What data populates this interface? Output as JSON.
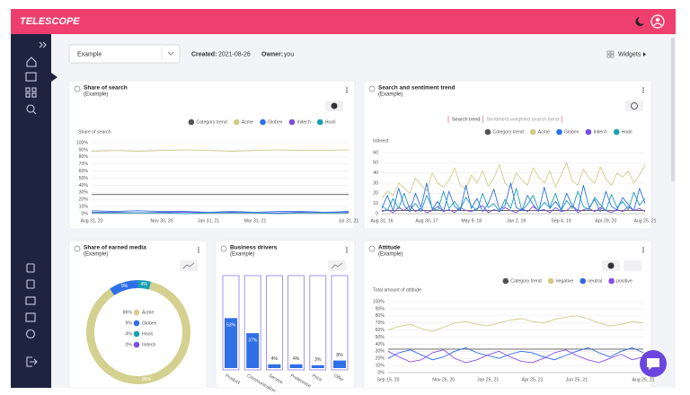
{
  "app": {
    "logo": "TELESCOPE"
  },
  "toolbar": {
    "select": "Example",
    "created_label": "Created:",
    "created": "2021-08-26",
    "owner_label": "Owner:",
    "owner": "you",
    "widgets": "Widgets"
  },
  "chart_data": [
    {
      "type": "line",
      "title": "Share of search",
      "subtitle": "(Example)",
      "y_label": "Share of search",
      "categories": [
        "Aug 31, 20",
        null,
        null,
        "Nov 30, 20",
        null,
        "Jan 31, 21",
        null,
        "Mar 31, 21",
        null,
        null,
        null,
        "Jul 31, 21"
      ],
      "series": [
        {
          "name": "Category trend",
          "color": "#555555",
          "values": [
            27,
            27,
            27,
            27,
            27,
            27,
            27,
            27,
            27,
            27,
            27,
            27
          ]
        },
        {
          "name": "Acme",
          "color": "#cfcb8a",
          "values": [
            88,
            89,
            88,
            89,
            90,
            89,
            88,
            89,
            90,
            89,
            89,
            90
          ]
        },
        {
          "name": "Globex",
          "color": "#2f6fe8",
          "values": [
            4,
            3,
            4,
            3,
            3,
            2,
            3,
            2,
            3,
            3,
            2,
            3
          ]
        },
        {
          "name": "Initech",
          "color": "#7b4de0",
          "values": [
            2,
            2,
            1,
            2,
            2,
            1,
            2,
            1,
            1,
            2,
            1,
            2
          ]
        },
        {
          "name": "Hooli",
          "color": "#1aa0b4",
          "values": [
            1,
            1,
            1,
            1,
            0,
            1,
            1,
            1,
            0,
            1,
            1,
            1
          ]
        }
      ],
      "ylim": [
        0,
        100
      ],
      "yticks": [
        {
          "value": 0,
          "label": "0%"
        },
        {
          "value": 10,
          "label": "10%"
        },
        {
          "value": 20,
          "label": "20%"
        },
        {
          "value": 30,
          "label": "30%"
        },
        {
          "value": 40,
          "label": "40%"
        },
        {
          "value": 50,
          "label": "50%"
        },
        {
          "value": 60,
          "label": "60%"
        },
        {
          "value": 70,
          "label": "70%"
        },
        {
          "value": 80,
          "label": "80%"
        },
        {
          "value": 90,
          "label": "90%"
        },
        {
          "value": 100,
          "label": "100%"
        }
      ],
      "grid": true
    },
    {
      "type": "line",
      "title": "Search and sentiment trend",
      "subtitle": "(Example)",
      "tabs": [
        "Search trend",
        "Sentiment-weighted search trend"
      ],
      "y_label": "Interest",
      "categories": [
        "Aug 31, 16",
        null,
        null,
        null,
        null,
        null,
        null,
        null,
        "Aug 30, 17",
        null,
        null,
        null,
        null,
        null,
        null,
        null,
        "May 9, 18",
        null,
        null,
        null,
        null,
        null,
        null,
        null,
        "Jan 2, 19",
        null,
        null,
        null,
        null,
        null,
        null,
        null,
        "Sep 4, 19",
        null,
        null,
        null,
        null,
        null,
        null,
        null,
        "Apr 29, 20",
        null,
        null,
        null,
        null,
        null,
        null,
        "Aug 25, 21"
      ],
      "series": [
        {
          "name": "Category trend",
          "color": "#555555",
          "values": [
            3,
            3,
            3,
            3,
            3,
            3,
            3,
            3,
            3,
            3,
            3,
            3,
            3,
            3,
            3,
            3,
            3,
            3,
            3,
            3,
            3,
            3,
            3,
            3,
            3,
            3,
            3,
            3,
            3,
            3,
            3,
            3,
            3,
            3,
            3,
            3,
            3,
            3,
            3,
            3,
            3,
            3,
            3,
            3,
            3,
            3,
            3,
            3
          ]
        },
        {
          "name": "Acme",
          "color": "#cfcb8a",
          "values": [
            15,
            22,
            18,
            30,
            25,
            20,
            35,
            28,
            22,
            40,
            30,
            26,
            33,
            45,
            28,
            24,
            38,
            30,
            42,
            27,
            35,
            48,
            30,
            25,
            40,
            33,
            28,
            45,
            36,
            30,
            42,
            26,
            38,
            50,
            32,
            28,
            44,
            35,
            30,
            46,
            34,
            28,
            40,
            36,
            42,
            30,
            38,
            48
          ]
        },
        {
          "name": "Globex",
          "color": "#2f6fe8",
          "values": [
            5,
            18,
            3,
            25,
            8,
            2,
            20,
            6,
            30,
            4,
            12,
            2,
            22,
            7,
            3,
            28,
            5,
            15,
            2,
            10,
            24,
            4,
            8,
            30,
            6,
            3,
            18,
            9,
            2,
            26,
            5,
            12,
            4,
            20,
            8,
            3,
            28,
            6,
            14,
            2,
            22,
            7,
            4,
            16,
            9,
            3,
            25,
            10
          ]
        },
        {
          "name": "Initech",
          "color": "#7b4de0",
          "values": [
            2,
            4,
            1,
            6,
            3,
            8,
            2,
            5,
            1,
            3,
            7,
            2,
            4,
            1,
            6,
            3,
            2,
            5,
            8,
            1,
            4,
            2,
            6,
            3,
            1,
            5,
            2,
            7,
            3,
            4,
            1,
            6,
            2,
            3,
            8,
            1,
            4,
            5,
            2,
            6,
            3,
            1,
            4,
            2,
            7,
            3,
            5,
            2
          ]
        },
        {
          "name": "Hooli",
          "color": "#1aa0b4",
          "values": [
            8,
            3,
            15,
            5,
            20,
            4,
            10,
            2,
            18,
            6,
            3,
            22,
            5,
            12,
            4,
            16,
            8,
            3,
            20,
            6,
            10,
            2,
            14,
            5,
            25,
            3,
            9,
            18,
            4,
            11,
            6,
            20,
            3,
            13,
            5,
            22,
            7,
            4,
            16,
            9,
            3,
            19,
            6,
            12,
            4,
            21,
            8,
            15
          ]
        }
      ],
      "ylim": [
        0,
        60
      ],
      "yticks": [
        0,
        10,
        20,
        30,
        40,
        50,
        60
      ],
      "grid": true
    },
    {
      "type": "donut",
      "title": "Share of earned media",
      "subtitle": "(Example)",
      "categories": [
        "Acme",
        "Globex",
        "Hooli",
        "Initech"
      ],
      "values": [
        86,
        9,
        4,
        0
      ],
      "value_labels": [
        "86%",
        "9%",
        "4%",
        "0%"
      ],
      "colors": [
        "#d4d08f",
        "#2f6fe8",
        "#1aa0b4",
        "#7b4de0"
      ]
    },
    {
      "type": "bar",
      "title": "Business drivers",
      "subtitle": "(Example)",
      "categories": [
        "Product",
        "Communication",
        "Service",
        "Preference",
        "Price",
        "Offer"
      ],
      "values": [
        53,
        37,
        4,
        4,
        3,
        8
      ],
      "value_labels": [
        "53%",
        "37%",
        "4%",
        "4%",
        "3%",
        "8%"
      ],
      "ylim": [
        0,
        100
      ],
      "color": "#2f6fe8"
    },
    {
      "type": "line",
      "title": "Attitude",
      "subtitle": "(Example)",
      "y_label": "Total amount of attitude",
      "categories": [
        "Sep 15, 20",
        null,
        null,
        null,
        null,
        "Nov 25, 20",
        null,
        null,
        null,
        "Jan 25, 21",
        null,
        null,
        null,
        "Apr 25, 21",
        null,
        null,
        null,
        "Jun 25, 21",
        null,
        null,
        null,
        null,
        null,
        "Aug 25, 21"
      ],
      "series": [
        {
          "name": "Category trend",
          "color": "#555555",
          "values": [
            33,
            33,
            33,
            33,
            33,
            33,
            33,
            33,
            33,
            33,
            33,
            33,
            33,
            33,
            33,
            33,
            33,
            33,
            33,
            33,
            33,
            33,
            33,
            33
          ]
        },
        {
          "name": "negative",
          "color": "#cfcb8a",
          "values": [
            60,
            65,
            68,
            62,
            58,
            64,
            70,
            72,
            68,
            66,
            70,
            74,
            76,
            72,
            70,
            75,
            78,
            80,
            76,
            70,
            66,
            68,
            72,
            70
          ]
        },
        {
          "name": "neutral",
          "color": "#3366e6",
          "values": [
            20,
            28,
            32,
            25,
            18,
            22,
            30,
            35,
            28,
            24,
            20,
            26,
            30,
            28,
            22,
            18,
            24,
            30,
            35,
            28,
            22,
            30,
            35,
            28
          ]
        },
        {
          "name": "positive",
          "color": "#8a4fe6",
          "values": [
            30,
            22,
            15,
            18,
            28,
            32,
            20,
            14,
            18,
            25,
            30,
            22,
            16,
            14,
            20,
            28,
            32,
            24,
            18,
            14,
            20,
            26,
            18,
            22
          ]
        }
      ],
      "ylim": [
        0,
        100
      ],
      "yticks": [
        {
          "value": 0,
          "label": "0%"
        },
        {
          "value": 10,
          "label": "10%"
        },
        {
          "value": 20,
          "label": "20%"
        },
        {
          "value": 30,
          "label": "30%"
        },
        {
          "value": 40,
          "label": "40%"
        },
        {
          "value": 50,
          "label": "50%"
        },
        {
          "value": 60,
          "label": "60%"
        },
        {
          "value": 70,
          "label": "70%"
        },
        {
          "value": 80,
          "label": "80%"
        },
        {
          "value": 90,
          "label": "90%"
        },
        {
          "value": 100,
          "label": "100%"
        }
      ],
      "grid": true
    }
  ]
}
